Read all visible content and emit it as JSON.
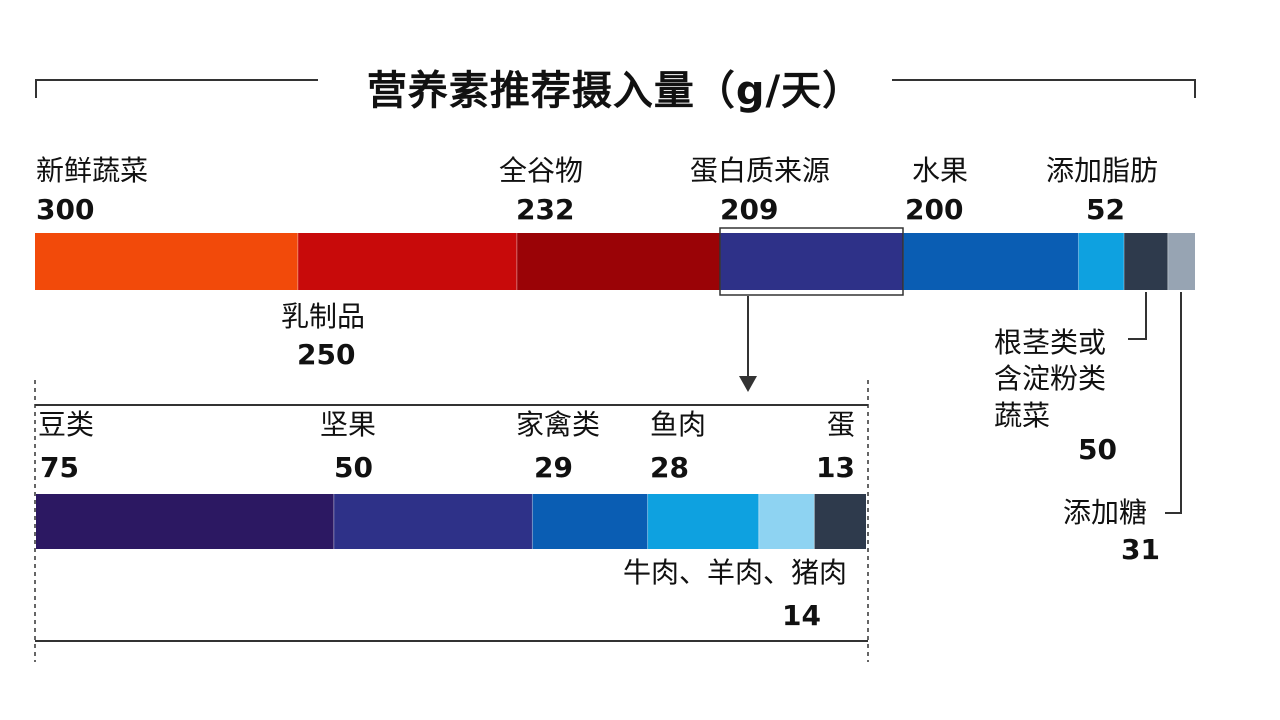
{
  "chart_data": [
    {
      "type": "bar",
      "title": "营养素推荐摄入量（g/天）",
      "categories": [
        "新鲜蔬菜",
        "乳制品",
        "全谷物",
        "蛋白质来源",
        "水果",
        "添加脂肪",
        "根茎类或含淀粉类蔬菜",
        "添加糖"
      ],
      "values": [
        300,
        250,
        232,
        209,
        200,
        52,
        50,
        31
      ],
      "colors": [
        "#f24a0a",
        "#c80a0a",
        "#9a0306",
        "#2e3188",
        "#0a5db3",
        "#0ea1e0",
        "#2e3a4c",
        "#97a4b3"
      ],
      "labels": {
        "veg": "新鲜蔬菜",
        "dairy": "乳制品",
        "grain": "全谷物",
        "protein": "蛋白质来源",
        "fruit": "水果",
        "fat": "添加脂肪",
        "starch": "根茎类或\n含淀粉类\n蔬菜",
        "sugar": "添加糖"
      },
      "value_labels": {
        "veg": "300",
        "dairy": "250",
        "grain": "232",
        "protein": "209",
        "fruit": "200",
        "fat": "52",
        "starch": "50",
        "sugar": "31"
      }
    },
    {
      "type": "bar",
      "categories": [
        "豆类",
        "坚果",
        "家禽类",
        "鱼肉",
        "牛肉、羊肉、猪肉",
        "蛋"
      ],
      "values": [
        75,
        50,
        29,
        28,
        14,
        13
      ],
      "colors": [
        "#2c1862",
        "#2e3188",
        "#0a5db3",
        "#0ea1e0",
        "#8ed3f2",
        "#2e3a4c"
      ],
      "labels": {
        "beans": "豆类",
        "nuts": "坚果",
        "poultry": "家禽类",
        "fish": "鱼肉",
        "meat": "牛肉、羊肉、猪肉",
        "egg": "蛋"
      },
      "value_labels": {
        "beans": "75",
        "nuts": "50",
        "poultry": "29",
        "fish": "28",
        "meat": "14",
        "egg": "13"
      }
    }
  ]
}
